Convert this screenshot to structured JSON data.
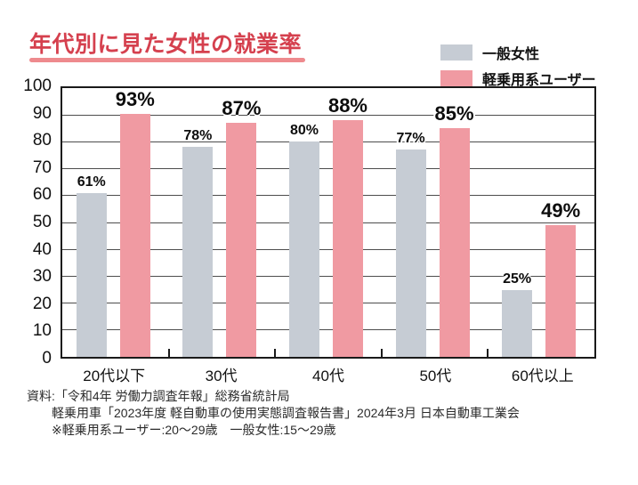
{
  "header": {
    "title": "年代別に見た女性の就業率",
    "title_color": "#d5404e",
    "underline_color": "#ee8a8e"
  },
  "legend": {
    "items": [
      {
        "label": "一般女性",
        "color": "#c6ccd4"
      },
      {
        "label": "軽乗用系ユーザー",
        "color": "#f09aa2"
      }
    ]
  },
  "chart_data": {
    "type": "bar",
    "title": "年代別に見た女性の就業率",
    "categories": [
      "20代以下",
      "30代",
      "40代",
      "50代",
      "60代以上"
    ],
    "series": [
      {
        "name": "一般女性",
        "color": "#c6ccd4",
        "values": [
          61,
          78,
          80,
          77,
          25
        ],
        "label_style": "small"
      },
      {
        "name": "軽乗用系ユーザー",
        "color": "#f09aa2",
        "values": [
          93,
          87,
          88,
          85,
          49
        ],
        "label_style": "big"
      }
    ],
    "value_suffix": "%",
    "xlabel": "",
    "ylabel": "",
    "ylim": [
      0,
      100
    ],
    "ytick_step": 10,
    "grid": true,
    "grid_color": "#4d4d4d",
    "legend_position": "top-right"
  },
  "footnote": {
    "lines": [
      "資料:「令和4年 労働力調査年報」総務省統計局",
      "軽乗用車「2023年度 軽自動車の使用実態調査報告書」2024年3月 日本自動車工業会",
      "※軽乗用系ユーザー:20〜29歳　一般女性:15〜29歳"
    ]
  }
}
